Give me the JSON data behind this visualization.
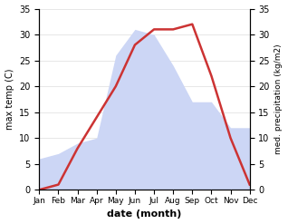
{
  "months": [
    "Jan",
    "Feb",
    "Mar",
    "Apr",
    "May",
    "Jun",
    "Jul",
    "Aug",
    "Sep",
    "Oct",
    "Nov",
    "Dec"
  ],
  "temp": [
    6,
    7,
    9,
    10,
    26,
    31,
    30,
    24,
    17,
    17,
    12,
    12
  ],
  "precip": [
    0,
    1,
    8,
    14,
    20,
    28,
    31,
    31,
    32,
    22,
    10,
    1
  ],
  "temp_color": "#cc3333",
  "precip_fill_color": "#ccd6f5",
  "ylim_left": [
    0,
    35
  ],
  "ylim_right": [
    0,
    35
  ],
  "ylabel_left": "max temp (C)",
  "ylabel_right": "med. precipitation (kg/m2)",
  "xlabel": "date (month)",
  "background_color": "#ffffff"
}
